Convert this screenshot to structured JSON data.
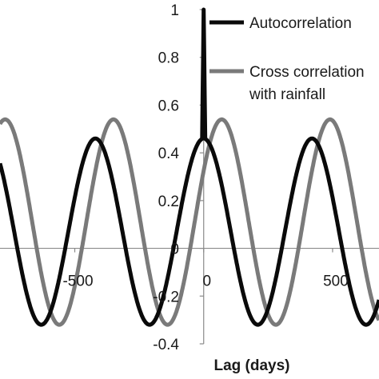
{
  "chart_data": {
    "type": "line",
    "title": "",
    "xlabel": "Lag (days)",
    "ylabel": "",
    "xlim": [
      -790,
      680
    ],
    "ylim": [
      -0.4,
      1
    ],
    "grid": false,
    "legend_position": "top-right",
    "y_ticks": [
      "-0.4",
      "-0.2",
      "0",
      "0.2",
      "0.4",
      "0.6",
      "0.8",
      "1"
    ],
    "x_ticks": [
      "-500",
      "0",
      "500"
    ],
    "colors": {
      "autocorrelation": "#0a0a0a",
      "cross": "#7a7a7a",
      "axis": "#8a8a8a"
    },
    "series": [
      {
        "name": "Autocorrelation",
        "period_days": 420,
        "peak_lags": [
          -420,
          0,
          420
        ],
        "peak_value": 0.46,
        "trough_value": -0.32,
        "lag0_value": 1.0,
        "range": [
          -790,
          680
        ]
      },
      {
        "name": "Cross correlation with rainfall",
        "period_days": 420,
        "peak_lags": [
          -770,
          -350,
          70,
          490
        ],
        "peak_value": 0.54,
        "trough_value": -0.32,
        "range": [
          -790,
          680
        ]
      }
    ]
  }
}
